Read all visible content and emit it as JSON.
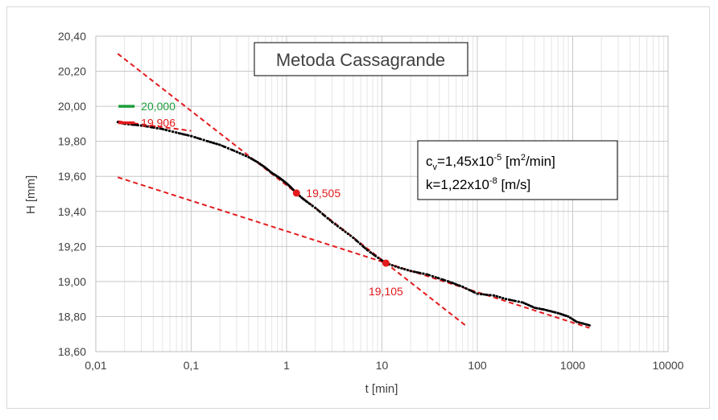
{
  "chart_data": {
    "type": "scatter",
    "title": "Metoda Cassagrande",
    "xlabel": "t [min]",
    "ylabel": "H [mm]",
    "xscale": "log",
    "xlim": [
      0.01,
      10000
    ],
    "ylim": [
      18.6,
      20.4
    ],
    "x_ticks": [
      "0,01",
      "0,1",
      "1",
      "10",
      "100",
      "1000",
      "10000"
    ],
    "y_ticks": [
      "18,60",
      "18,80",
      "19,00",
      "19,20",
      "19,40",
      "19,60",
      "19,80",
      "20,00",
      "20,20",
      "20,40"
    ],
    "grid": true,
    "colors": {
      "data": "#000000",
      "construction": "#e41a1c",
      "h0_line": "#1a9e3a",
      "label_red": "#e41a1c",
      "label_green": "#1a9e3a"
    },
    "series": [
      {
        "points": [
          [
            0.017,
            19.91
          ],
          [
            0.02,
            19.9
          ],
          [
            0.03,
            19.89
          ],
          [
            0.05,
            19.87
          ],
          [
            0.07,
            19.85
          ],
          [
            0.1,
            19.83
          ],
          [
            0.15,
            19.8
          ],
          [
            0.2,
            19.78
          ],
          [
            0.3,
            19.74
          ],
          [
            0.4,
            19.71
          ],
          [
            0.5,
            19.68
          ],
          [
            0.6,
            19.65
          ],
          [
            0.7,
            19.62
          ],
          [
            0.8,
            19.6
          ],
          [
            0.9,
            19.58
          ],
          [
            1.0,
            19.56
          ],
          [
            1.1,
            19.54
          ],
          [
            1.27,
            19.505
          ],
          [
            1.5,
            19.47
          ],
          [
            2.0,
            19.42
          ],
          [
            3.0,
            19.34
          ],
          [
            5.0,
            19.25
          ],
          [
            7.0,
            19.18
          ],
          [
            10.0,
            19.12
          ],
          [
            11.0,
            19.105
          ],
          [
            15.0,
            19.08
          ],
          [
            20.0,
            19.06
          ],
          [
            30.0,
            19.04
          ],
          [
            50.0,
            19.0
          ],
          [
            70.0,
            18.97
          ],
          [
            100.0,
            18.93
          ],
          [
            150.0,
            18.92
          ],
          [
            200.0,
            18.9
          ],
          [
            300.0,
            18.88
          ],
          [
            400.0,
            18.85
          ],
          [
            500.0,
            18.84
          ],
          [
            700.0,
            18.82
          ],
          [
            900.0,
            18.8
          ],
          [
            1100.0,
            18.77
          ],
          [
            1500.0,
            18.75
          ]
        ]
      }
    ],
    "construction_lines": [
      {
        "from": [
          0.017,
          20.3
        ],
        "to": [
          1.27,
          19.505
        ]
      },
      {
        "from": [
          0.017,
          19.595
        ],
        "to": [
          1500,
          18.735
        ]
      },
      {
        "from": [
          1.27,
          19.505
        ],
        "to": [
          75,
          18.75
        ]
      },
      {
        "from": [
          0.017,
          19.915
        ],
        "to": [
          0.1,
          19.86
        ]
      }
    ],
    "markers": [
      {
        "x": 1.27,
        "y": 19.505
      },
      {
        "x": 11.0,
        "y": 19.105
      }
    ],
    "h0_marks": [
      {
        "x": 0.021,
        "y": 20.0,
        "label": "20,000",
        "color": "#1a9e3a"
      },
      {
        "x": 0.021,
        "y": 19.906,
        "label": "19,906",
        "color": "#e41a1c"
      }
    ],
    "point_labels": [
      {
        "x": 1.27,
        "y": 19.505,
        "label": "19,505",
        "placement": "right"
      },
      {
        "x": 11.0,
        "y": 19.105,
        "label": "19,105",
        "placement": "below"
      }
    ],
    "info_box": {
      "line1": {
        "prefix": "c",
        "sub": "v",
        "value": "=1,45x10",
        "exp": "-5",
        "unit_a": " [m",
        "unit_exp": "2",
        "unit_b": "/min]"
      },
      "line2": {
        "value": "k=1,22x10",
        "exp": "-8",
        "unit": " [m/s]"
      }
    }
  }
}
